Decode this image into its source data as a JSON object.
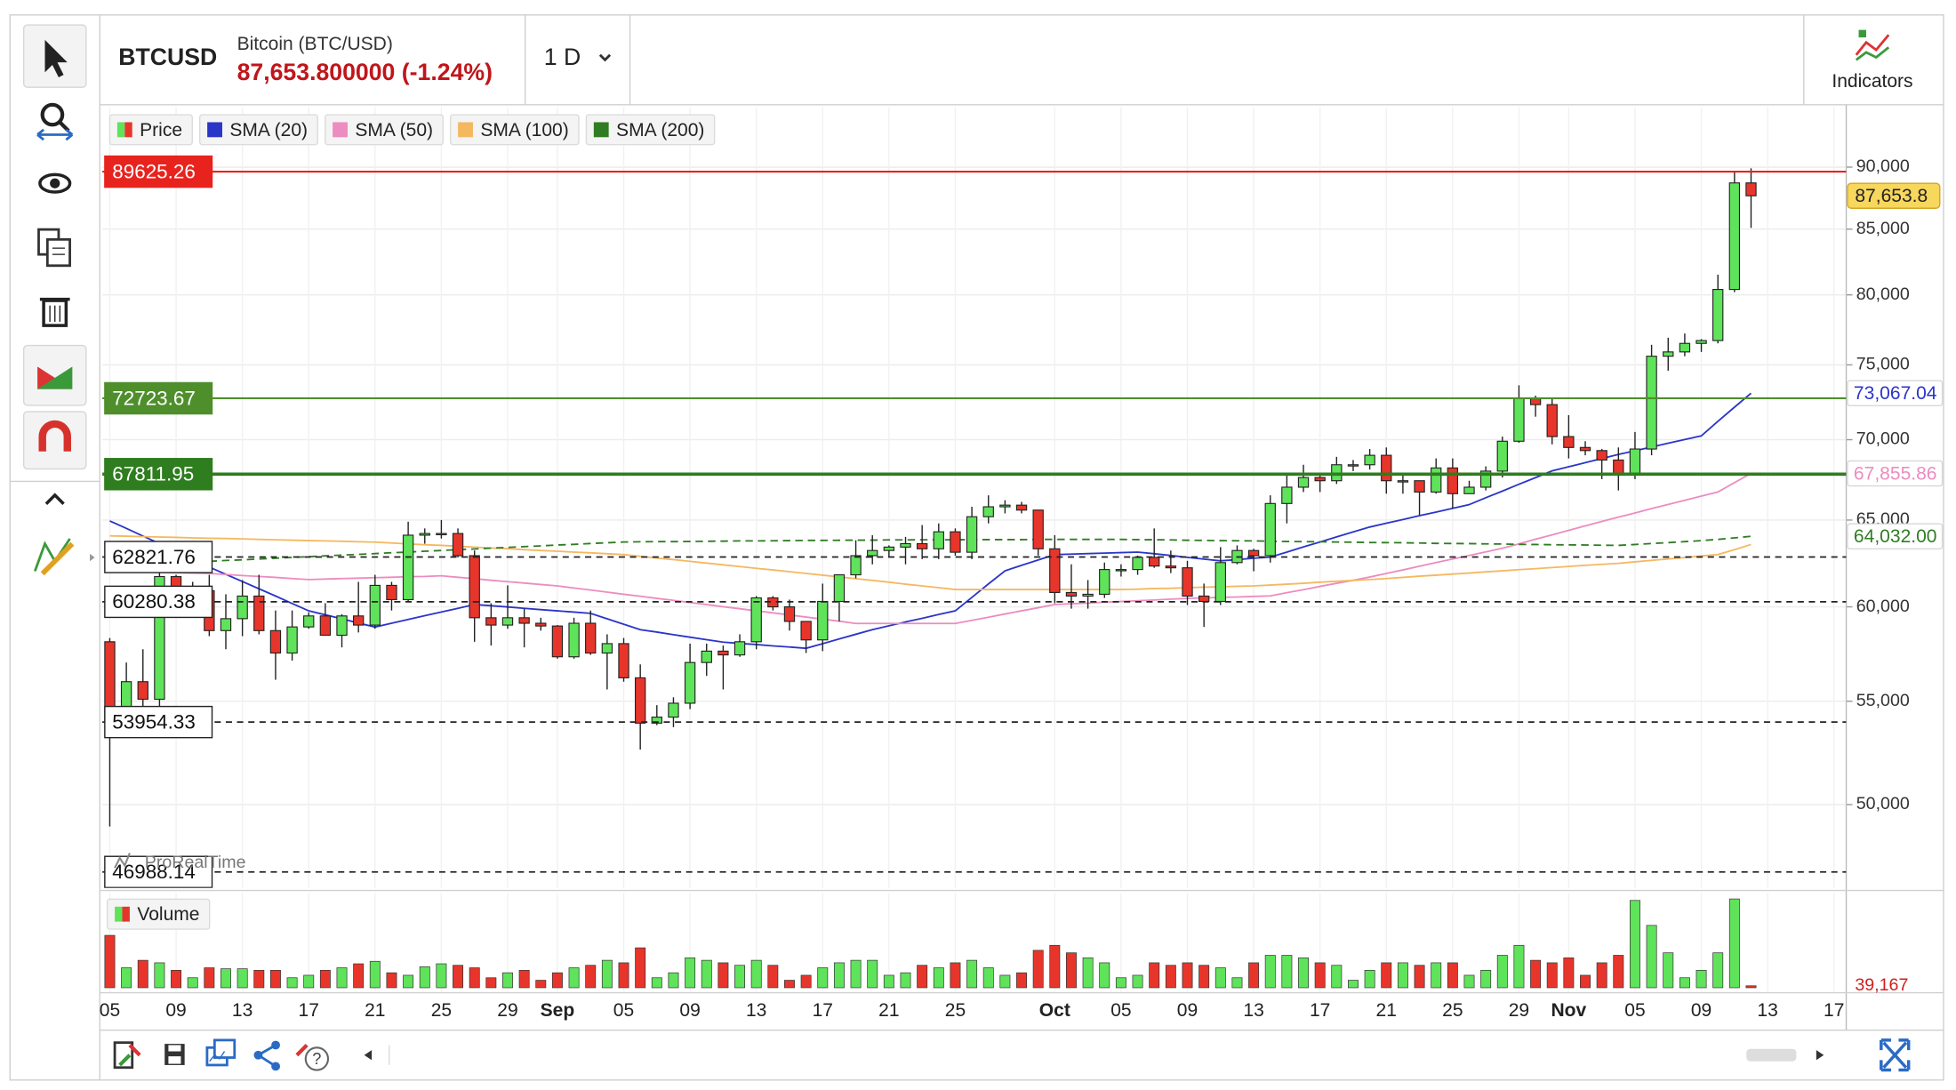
{
  "header": {
    "symbol": "BTCUSD",
    "name": "Bitcoin (BTC/USD)",
    "quote": "87,653.800000 (-1.24%)",
    "interval": "1 D",
    "indicators": "Indicators"
  },
  "chart_data": {
    "type": "candlestick",
    "price_name": "Price",
    "log_scale": true,
    "grid": true,
    "up_color": "#5fe35a",
    "down_color": "#e8352b",
    "watermark": "ProRealTime",
    "categories": [
      "05",
      null,
      null,
      null,
      "09",
      null,
      null,
      null,
      "13",
      null,
      null,
      null,
      "17",
      null,
      null,
      null,
      "21",
      null,
      null,
      null,
      "25",
      null,
      null,
      null,
      "29",
      null,
      null,
      "Sep",
      null,
      null,
      null,
      "05",
      null,
      null,
      null,
      "09",
      null,
      null,
      null,
      "13",
      null,
      null,
      null,
      "17",
      null,
      null,
      null,
      "21",
      null,
      null,
      null,
      "25",
      null,
      null,
      null,
      null,
      null,
      "Oct",
      null,
      null,
      null,
      "05",
      null,
      null,
      null,
      "09",
      null,
      null,
      null,
      "13",
      null,
      null,
      null,
      "17",
      null,
      null,
      null,
      "21",
      null,
      null,
      null,
      "25",
      null,
      null,
      null,
      "29",
      null,
      null,
      "Nov",
      null,
      null,
      null,
      "05",
      null,
      null,
      null,
      "09",
      null,
      null,
      null,
      "13",
      null,
      null,
      null,
      "17"
    ],
    "open": [
      58100,
      54000,
      56000,
      55100,
      61700,
      60900,
      60900,
      58700,
      59350,
      60600,
      58700,
      57500,
      58900,
      59500,
      58450,
      59500,
      59000,
      61200,
      60400,
      64100,
      64200,
      64200,
      62900,
      59400,
      59000,
      59400,
      59100,
      58950,
      57300,
      59100,
      57500,
      58000,
      56200,
      53900,
      54200,
      54900,
      57000,
      57600,
      57400,
      58100,
      60500,
      60000,
      59200,
      58200,
      60300,
      61800,
      62900,
      63200,
      63400,
      63600,
      63300,
      64300,
      63100,
      65200,
      65800,
      65900,
      65600,
      63300,
      60800,
      60600,
      60700,
      62100,
      62100,
      62800,
      62300,
      62200,
      60600,
      60300,
      62500,
      63200,
      62900,
      66000,
      67000,
      67600,
      67400,
      68400,
      68400,
      69000,
      67400,
      67400,
      66700,
      68200,
      66600,
      67000,
      68000,
      69900,
      72700,
      72300,
      70200,
      69500,
      69300,
      68700,
      67800,
      69400,
      75600,
      75900,
      76500,
      76700,
      80400,
      88700,
      null,
      null,
      null,
      null,
      null
    ],
    "high": [
      58300,
      57000,
      57700,
      62700,
      61800,
      61400,
      61800,
      60700,
      61500,
      61800,
      59800,
      59800,
      59700,
      60200,
      59600,
      61400,
      61800,
      61400,
      64900,
      64500,
      65000,
      64500,
      63200,
      60200,
      61200,
      59900,
      59400,
      59000,
      59400,
      59800,
      58500,
      58300,
      56900,
      54800,
      55200,
      58000,
      58000,
      57900,
      58500,
      60600,
      60600,
      60400,
      59200,
      61300,
      61800,
      63800,
      64100,
      63500,
      64000,
      64700,
      64800,
      64500,
      65800,
      66500,
      66200,
      66100,
      65600,
      64100,
      62400,
      61500,
      62500,
      62400,
      62900,
      64500,
      63200,
      62600,
      61300,
      63400,
      63500,
      63300,
      66500,
      67800,
      68400,
      67900,
      68900,
      68700,
      69400,
      69500,
      67800,
      67400,
      68800,
      68800,
      67400,
      68300,
      70200,
      73600,
      72900,
      72700,
      71600,
      69900,
      69400,
      69500,
      70500,
      76400,
      76900,
      77200,
      76800,
      81500,
      89600,
      89900,
      null,
      null,
      null,
      null,
      null
    ],
    "low": [
      49000,
      53900,
      54600,
      54700,
      59600,
      60400,
      58400,
      57700,
      58400,
      58500,
      56100,
      57100,
      58800,
      58500,
      57800,
      58600,
      58800,
      59800,
      60300,
      63600,
      63900,
      62800,
      58100,
      57900,
      58800,
      57800,
      58700,
      57200,
      57200,
      57400,
      55600,
      56000,
      52600,
      53800,
      53700,
      54600,
      56300,
      55600,
      57300,
      57700,
      59800,
      58700,
      57500,
      57600,
      59200,
      61600,
      62400,
      62800,
      62400,
      62700,
      62700,
      62900,
      62700,
      64800,
      65400,
      65400,
      62900,
      60200,
      59900,
      59900,
      60500,
      61700,
      61800,
      62200,
      61900,
      60100,
      58900,
      60100,
      62400,
      62000,
      62500,
      64800,
      66700,
      66700,
      67200,
      68000,
      68100,
      66600,
      66600,
      65300,
      66600,
      65700,
      66600,
      66800,
      67600,
      69800,
      71500,
      69700,
      68800,
      69000,
      67500,
      66800,
      67500,
      69000,
      74600,
      75600,
      75900,
      76500,
      80200,
      85100,
      null,
      null,
      null,
      null,
      null
    ],
    "close": [
      54000,
      56000,
      55100,
      61700,
      60900,
      60900,
      58700,
      59350,
      60600,
      58700,
      57500,
      58900,
      59500,
      58450,
      59500,
      59000,
      61200,
      60400,
      64100,
      64200,
      64200,
      62900,
      59400,
      59000,
      59400,
      59100,
      58950,
      57300,
      59100,
      57500,
      58000,
      56200,
      53900,
      54200,
      54900,
      57000,
      57600,
      57400,
      58100,
      60500,
      60000,
      59200,
      58200,
      60300,
      61800,
      62900,
      63200,
      63400,
      63600,
      63300,
      64300,
      63100,
      65200,
      65800,
      65900,
      65600,
      63300,
      60800,
      60600,
      60700,
      62100,
      62100,
      62800,
      62300,
      62200,
      60600,
      60300,
      62500,
      63200,
      62900,
      66000,
      67000,
      67600,
      67400,
      68400,
      68400,
      69000,
      67400,
      67400,
      66700,
      68200,
      66600,
      67000,
      68000,
      69900,
      72700,
      72300,
      70200,
      69500,
      69300,
      68700,
      67800,
      69400,
      75600,
      75900,
      76500,
      76700,
      80400,
      88700,
      87653.8,
      null,
      null,
      null,
      null,
      null
    ],
    "ylim": [
      46300,
      95000
    ],
    "yticks": [
      {
        "value": 50000,
        "label": "50,000"
      },
      {
        "value": 55000,
        "label": "55,000"
      },
      {
        "value": 60000,
        "label": "60,000"
      },
      {
        "value": 65000,
        "label": "65,000"
      },
      {
        "value": 70000,
        "label": "70,000"
      },
      {
        "value": 75000,
        "label": "75,000"
      },
      {
        "value": 80000,
        "label": "80,000"
      },
      {
        "value": 85000,
        "label": "85,000"
      },
      {
        "value": 90000,
        "label": "90,000"
      }
    ],
    "price_tag": {
      "value": 87653.8,
      "label": "87,653.8"
    },
    "series": [
      {
        "name": "SMA (20)",
        "color": "#2a35c8",
        "style": "solid",
        "tag": {
          "value": 73067.04,
          "label": "73,067.04"
        },
        "values": [
          64950,
          64500,
          64050,
          63600,
          63150,
          62700,
          62240,
          61830,
          61420,
          61010,
          60600,
          60190,
          59780,
          59560,
          59340,
          59110,
          58890,
          59100,
          59310,
          59510,
          59720,
          59920,
          60130,
          60060,
          59990,
          59920,
          59850,
          59780,
          59710,
          59640,
          59340,
          59050,
          58750,
          58620,
          58480,
          58350,
          58210,
          58080,
          58010,
          57950,
          57880,
          57820,
          57750,
          58000,
          58250,
          58500,
          58750,
          58960,
          59170,
          59370,
          59580,
          59780,
          60530,
          61280,
          62030,
          62340,
          62650,
          62960,
          62990,
          63020,
          63050,
          63080,
          63110,
          63010,
          62910,
          62800,
          62700,
          62600,
          62670,
          62750,
          62820,
          63110,
          63410,
          63700,
          64000,
          64290,
          64580,
          64810,
          65030,
          65260,
          65480,
          65710,
          65930,
          66350,
          66760,
          67180,
          67590,
          68010,
          68270,
          68530,
          68790,
          69050,
          69290,
          69530,
          69770,
          70010,
          70250,
          71190,
          72130,
          73067.04,
          null,
          null,
          null,
          null,
          null
        ]
      },
      {
        "name": "SMA (50)",
        "color": "#ec8cc0",
        "style": "solid",
        "tag": {
          "value": 67855.86,
          "label": "67,855.86"
        },
        "values": [
          62000,
          61980,
          61960,
          61940,
          61920,
          61900,
          61880,
          61820,
          61760,
          61710,
          61650,
          61590,
          61530,
          61560,
          61590,
          61610,
          61640,
          61660,
          61690,
          61710,
          61740,
          61660,
          61580,
          61490,
          61410,
          61330,
          61250,
          61170,
          61050,
          60940,
          60820,
          60700,
          60590,
          60470,
          60360,
          60240,
          60130,
          60010,
          59900,
          59780,
          59670,
          59550,
          59440,
          59320,
          59210,
          59090,
          59090,
          59090,
          59090,
          59090,
          59090,
          59090,
          59260,
          59430,
          59610,
          59780,
          59950,
          60130,
          60170,
          60210,
          60260,
          60300,
          60340,
          60380,
          60430,
          60470,
          60500,
          60530,
          60550,
          60580,
          60610,
          60790,
          60960,
          61140,
          61320,
          61490,
          61670,
          61880,
          62080,
          62290,
          62500,
          62710,
          62910,
          63120,
          63330,
          63590,
          63860,
          64120,
          64390,
          64650,
          64920,
          65180,
          65430,
          65690,
          65940,
          66190,
          66450,
          66700,
          67280,
          67855.86,
          null,
          null,
          null,
          null,
          null
        ]
      },
      {
        "name": "SMA (100)",
        "color": "#f4b860",
        "style": "solid",
        "values": [
          64060,
          64040,
          64010,
          63990,
          63970,
          63940,
          63920,
          63900,
          63880,
          63850,
          63830,
          63810,
          63780,
          63760,
          63740,
          63710,
          63690,
          63640,
          63590,
          63540,
          63500,
          63450,
          63400,
          63350,
          63300,
          63250,
          63200,
          63160,
          63110,
          63060,
          63010,
          62960,
          62860,
          62760,
          62670,
          62570,
          62470,
          62370,
          62270,
          62170,
          62080,
          61980,
          61880,
          61780,
          61680,
          61580,
          61480,
          61380,
          61270,
          61170,
          61070,
          60970,
          60970,
          60970,
          60970,
          60970,
          60970,
          60970,
          60970,
          60970,
          60970,
          60970,
          60990,
          61020,
          61040,
          61070,
          61100,
          61120,
          61150,
          61170,
          61220,
          61270,
          61320,
          61380,
          61430,
          61480,
          61530,
          61590,
          61650,
          61720,
          61780,
          61840,
          61900,
          61970,
          62030,
          62090,
          62150,
          62210,
          62280,
          62340,
          62400,
          62460,
          62540,
          62630,
          62710,
          62790,
          62880,
          62960,
          63250,
          63550,
          null,
          null,
          null,
          null,
          null
        ]
      },
      {
        "name": "SMA (200)",
        "color": "#2f7d22",
        "style": "dashed",
        "tag": {
          "value": 64032,
          "label": "64,032.00"
        },
        "values": [
          62300,
          62350,
          62390,
          62440,
          62480,
          62530,
          62570,
          62620,
          62660,
          62710,
          62750,
          62800,
          62840,
          62890,
          62930,
          62980,
          63020,
          63070,
          63110,
          63160,
          63200,
          63250,
          63290,
          63340,
          63380,
          63430,
          63470,
          63520,
          63560,
          63610,
          63650,
          63700,
          63710,
          63720,
          63720,
          63730,
          63740,
          63750,
          63760,
          63760,
          63770,
          63780,
          63790,
          63790,
          63800,
          63810,
          63810,
          63820,
          63820,
          63830,
          63830,
          63830,
          63840,
          63840,
          63840,
          63840,
          63850,
          63850,
          63850,
          63850,
          63850,
          63850,
          63840,
          63830,
          63820,
          63800,
          63790,
          63780,
          63770,
          63760,
          63740,
          63730,
          63720,
          63710,
          63700,
          63680,
          63670,
          63660,
          63650,
          63640,
          63620,
          63610,
          63600,
          63590,
          63580,
          63560,
          63550,
          63540,
          63530,
          63520,
          63510,
          63500,
          63550,
          63610,
          63660,
          63720,
          63780,
          63850,
          63940,
          64032,
          null,
          null,
          null,
          null,
          null
        ]
      }
    ],
    "levels": [
      {
        "value": 89625.26,
        "color": "#e8231e",
        "style": "solid"
      },
      {
        "value": 72723.67,
        "color": "#4e8f2c",
        "style": "solid"
      },
      {
        "value": 67811.95,
        "color": "#2e7d1e",
        "style": "thick"
      },
      {
        "value": 62821.76,
        "color": "#222222",
        "style": "dashed"
      },
      {
        "value": 60280.38,
        "color": "#222222",
        "style": "dashed"
      },
      {
        "value": 53954.33,
        "color": "#222222",
        "style": "dashed"
      },
      {
        "value": 46988.14,
        "color": "#222222",
        "style": "dashed"
      }
    ],
    "volume": {
      "name": "Volume",
      "ylim": [
        0,
        1800000
      ],
      "tag": {
        "value": 39167,
        "label": "39,167"
      },
      "values": [
        1050000,
        400000,
        550000,
        500000,
        350000,
        200000,
        400000,
        380000,
        380000,
        350000,
        350000,
        200000,
        250000,
        350000,
        400000,
        480000,
        530000,
        300000,
        250000,
        420000,
        480000,
        450000,
        400000,
        200000,
        300000,
        350000,
        150000,
        300000,
        400000,
        450000,
        550000,
        500000,
        800000,
        200000,
        300000,
        600000,
        550000,
        500000,
        450000,
        550000,
        450000,
        150000,
        250000,
        400000,
        500000,
        550000,
        550000,
        250000,
        300000,
        450000,
        400000,
        500000,
        550000,
        400000,
        250000,
        300000,
        750000,
        850000,
        700000,
        600000,
        500000,
        200000,
        250000,
        500000,
        450000,
        500000,
        450000,
        400000,
        200000,
        500000,
        650000,
        650000,
        600000,
        500000,
        450000,
        150000,
        350000,
        500000,
        500000,
        450000,
        500000,
        500000,
        250000,
        350000,
        650000,
        850000,
        550000,
        500000,
        600000,
        250000,
        500000,
        650000,
        1750000,
        1250000,
        700000,
        200000,
        350000,
        700000,
        1780000,
        39167,
        null,
        null,
        null,
        null,
        null
      ]
    }
  }
}
